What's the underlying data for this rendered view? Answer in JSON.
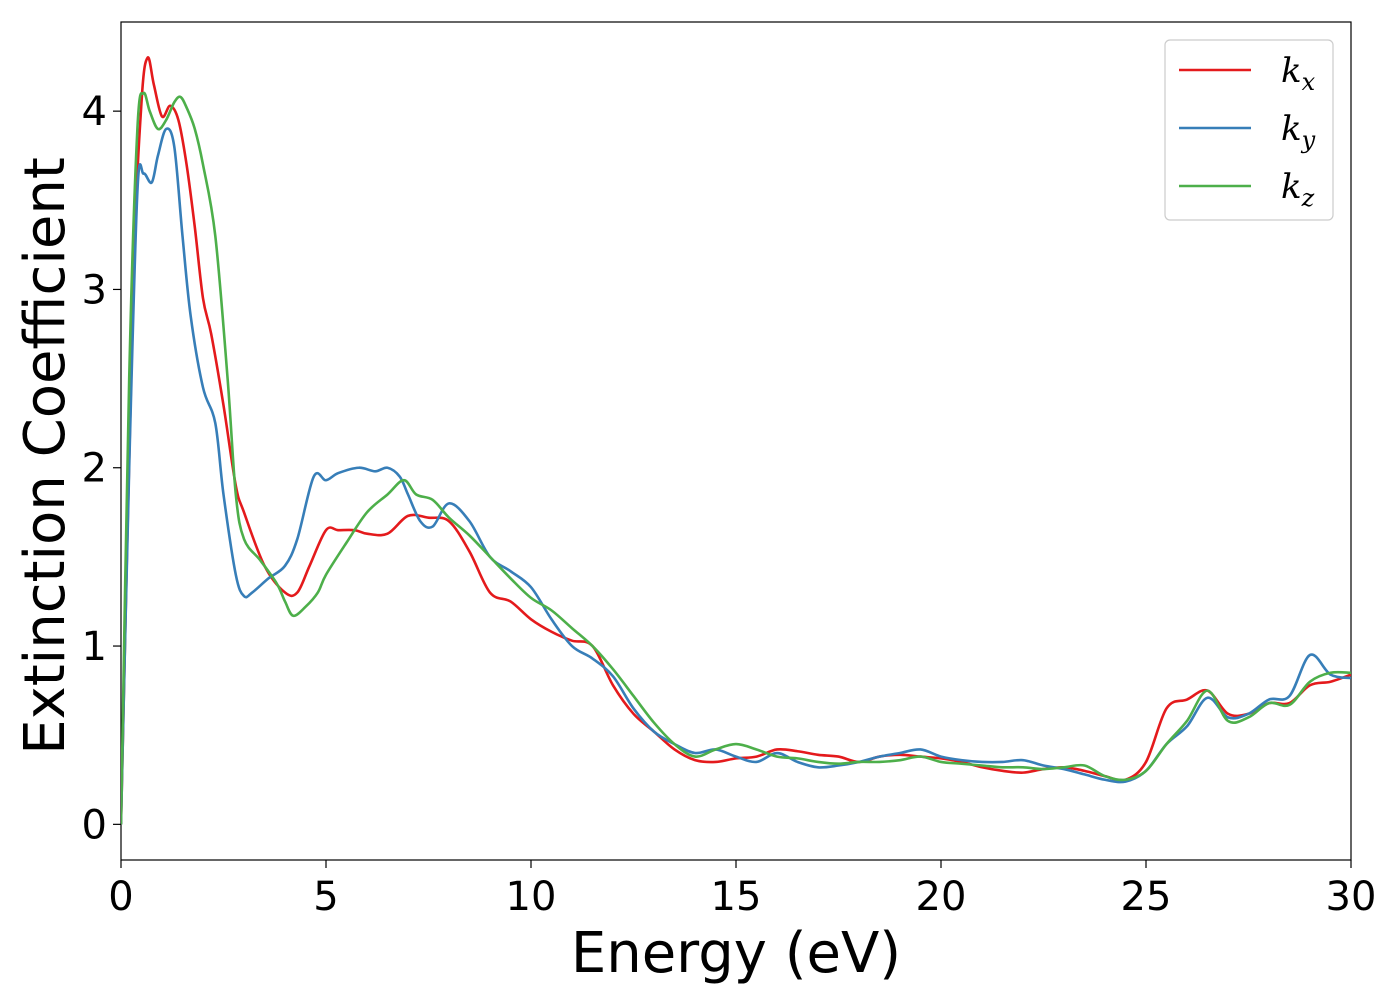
{
  "chart_data": {
    "type": "line",
    "xlabel": "Energy (eV)",
    "ylabel": "Extinction Coefficient",
    "xlim": [
      0,
      30
    ],
    "ylim": [
      -0.2,
      4.5
    ],
    "xticks": [
      "0",
      "5",
      "10",
      "15",
      "20",
      "25",
      "30"
    ],
    "yticks": [
      "0",
      "1",
      "2",
      "3",
      "4"
    ],
    "grid": false,
    "legend_position": "top-right",
    "series": [
      {
        "name": "k",
        "subscript": "x",
        "color": "#e41a1c",
        "x": [
          0,
          0.3,
          0.5,
          0.65,
          0.8,
          1.0,
          1.2,
          1.4,
          1.6,
          1.8,
          2.0,
          2.2,
          2.5,
          2.8,
          3.0,
          3.5,
          4.0,
          4.3,
          4.6,
          5.0,
          5.3,
          5.7,
          6.0,
          6.5,
          7.0,
          7.5,
          8.0,
          8.5,
          9.0,
          9.5,
          10.0,
          10.5,
          11.0,
          11.5,
          12.0,
          12.5,
          13.0,
          13.5,
          14.0,
          14.5,
          15.0,
          15.5,
          16.0,
          16.5,
          17.0,
          17.5,
          18.0,
          18.5,
          19.0,
          19.5,
          20.0,
          20.5,
          21.0,
          21.5,
          22.0,
          22.5,
          23.0,
          23.5,
          24.0,
          24.5,
          25.0,
          25.5,
          26.0,
          26.5,
          27.0,
          27.5,
          28.0,
          28.5,
          29.0,
          29.5,
          30.0
        ],
        "values": [
          0,
          3.0,
          4.05,
          4.3,
          4.15,
          3.97,
          4.03,
          3.95,
          3.7,
          3.35,
          2.95,
          2.75,
          2.35,
          1.9,
          1.75,
          1.45,
          1.3,
          1.3,
          1.45,
          1.65,
          1.65,
          1.65,
          1.63,
          1.63,
          1.73,
          1.72,
          1.7,
          1.53,
          1.3,
          1.25,
          1.15,
          1.08,
          1.03,
          1.0,
          0.78,
          0.62,
          0.52,
          0.42,
          0.36,
          0.35,
          0.37,
          0.38,
          0.42,
          0.41,
          0.39,
          0.38,
          0.35,
          0.38,
          0.39,
          0.38,
          0.37,
          0.35,
          0.32,
          0.3,
          0.29,
          0.31,
          0.32,
          0.3,
          0.27,
          0.25,
          0.35,
          0.65,
          0.7,
          0.75,
          0.62,
          0.62,
          0.68,
          0.68,
          0.78,
          0.8,
          0.84
        ]
      },
      {
        "name": "k",
        "subscript": "y",
        "color": "#377eb8",
        "x": [
          0,
          0.2,
          0.4,
          0.55,
          0.75,
          0.9,
          1.1,
          1.3,
          1.5,
          1.7,
          2.0,
          2.3,
          2.5,
          2.8,
          3.0,
          3.2,
          3.6,
          4.0,
          4.3,
          4.7,
          5.0,
          5.3,
          5.8,
          6.2,
          6.5,
          6.8,
          7.0,
          7.3,
          7.6,
          8.0,
          8.5,
          9.0,
          9.5,
          10.0,
          10.5,
          11.0,
          11.5,
          12.0,
          12.5,
          13.0,
          13.5,
          14.0,
          14.5,
          15.0,
          15.5,
          16.0,
          16.5,
          17.0,
          17.5,
          18.0,
          18.5,
          19.0,
          19.5,
          20.0,
          20.5,
          21.0,
          21.5,
          22.0,
          22.5,
          23.0,
          23.5,
          24.0,
          24.5,
          25.0,
          25.5,
          26.0,
          26.5,
          27.0,
          27.5,
          28.0,
          28.5,
          29.0,
          29.5,
          30.0
        ],
        "values": [
          0,
          2.0,
          3.55,
          3.65,
          3.6,
          3.75,
          3.9,
          3.8,
          3.3,
          2.85,
          2.45,
          2.25,
          1.85,
          1.4,
          1.28,
          1.3,
          1.38,
          1.45,
          1.6,
          1.95,
          1.93,
          1.97,
          2.0,
          1.98,
          2.0,
          1.95,
          1.85,
          1.7,
          1.67,
          1.8,
          1.7,
          1.5,
          1.42,
          1.33,
          1.15,
          1.0,
          0.93,
          0.83,
          0.65,
          0.52,
          0.45,
          0.4,
          0.42,
          0.38,
          0.35,
          0.4,
          0.35,
          0.32,
          0.33,
          0.35,
          0.38,
          0.4,
          0.42,
          0.38,
          0.36,
          0.35,
          0.35,
          0.36,
          0.33,
          0.31,
          0.28,
          0.25,
          0.24,
          0.3,
          0.45,
          0.55,
          0.71,
          0.6,
          0.62,
          0.7,
          0.72,
          0.95,
          0.84,
          0.82
        ]
      },
      {
        "name": "k",
        "subscript": "z",
        "color": "#4daf4a",
        "x": [
          0,
          0.2,
          0.4,
          0.55,
          0.7,
          0.9,
          1.1,
          1.3,
          1.45,
          1.6,
          1.8,
          2.0,
          2.3,
          2.6,
          2.8,
          3.0,
          3.4,
          3.8,
          4.0,
          4.2,
          4.5,
          4.8,
          5.0,
          5.5,
          6.0,
          6.5,
          6.9,
          7.2,
          7.6,
          8.0,
          8.5,
          9.0,
          9.5,
          10.0,
          10.5,
          11.0,
          11.5,
          12.0,
          12.5,
          13.0,
          13.5,
          14.0,
          14.5,
          15.0,
          15.5,
          16.0,
          16.5,
          17.0,
          17.5,
          18.0,
          18.5,
          19.0,
          19.5,
          20.0,
          20.5,
          21.0,
          21.5,
          22.0,
          22.5,
          23.0,
          23.5,
          24.0,
          24.5,
          25.0,
          25.5,
          26.0,
          26.5,
          27.0,
          27.5,
          28.0,
          28.5,
          29.0,
          29.5,
          30.0
        ],
        "values": [
          0,
          2.5,
          3.9,
          4.1,
          4.0,
          3.9,
          3.95,
          4.05,
          4.08,
          4.02,
          3.9,
          3.7,
          3.3,
          2.5,
          1.85,
          1.6,
          1.48,
          1.35,
          1.25,
          1.17,
          1.22,
          1.3,
          1.4,
          1.58,
          1.75,
          1.85,
          1.93,
          1.85,
          1.82,
          1.72,
          1.62,
          1.5,
          1.38,
          1.27,
          1.2,
          1.1,
          1.0,
          0.87,
          0.72,
          0.57,
          0.45,
          0.38,
          0.42,
          0.45,
          0.42,
          0.38,
          0.37,
          0.35,
          0.34,
          0.35,
          0.35,
          0.36,
          0.38,
          0.35,
          0.34,
          0.33,
          0.32,
          0.32,
          0.31,
          0.32,
          0.33,
          0.27,
          0.25,
          0.3,
          0.45,
          0.58,
          0.75,
          0.58,
          0.6,
          0.68,
          0.67,
          0.8,
          0.85,
          0.85
        ]
      }
    ]
  }
}
